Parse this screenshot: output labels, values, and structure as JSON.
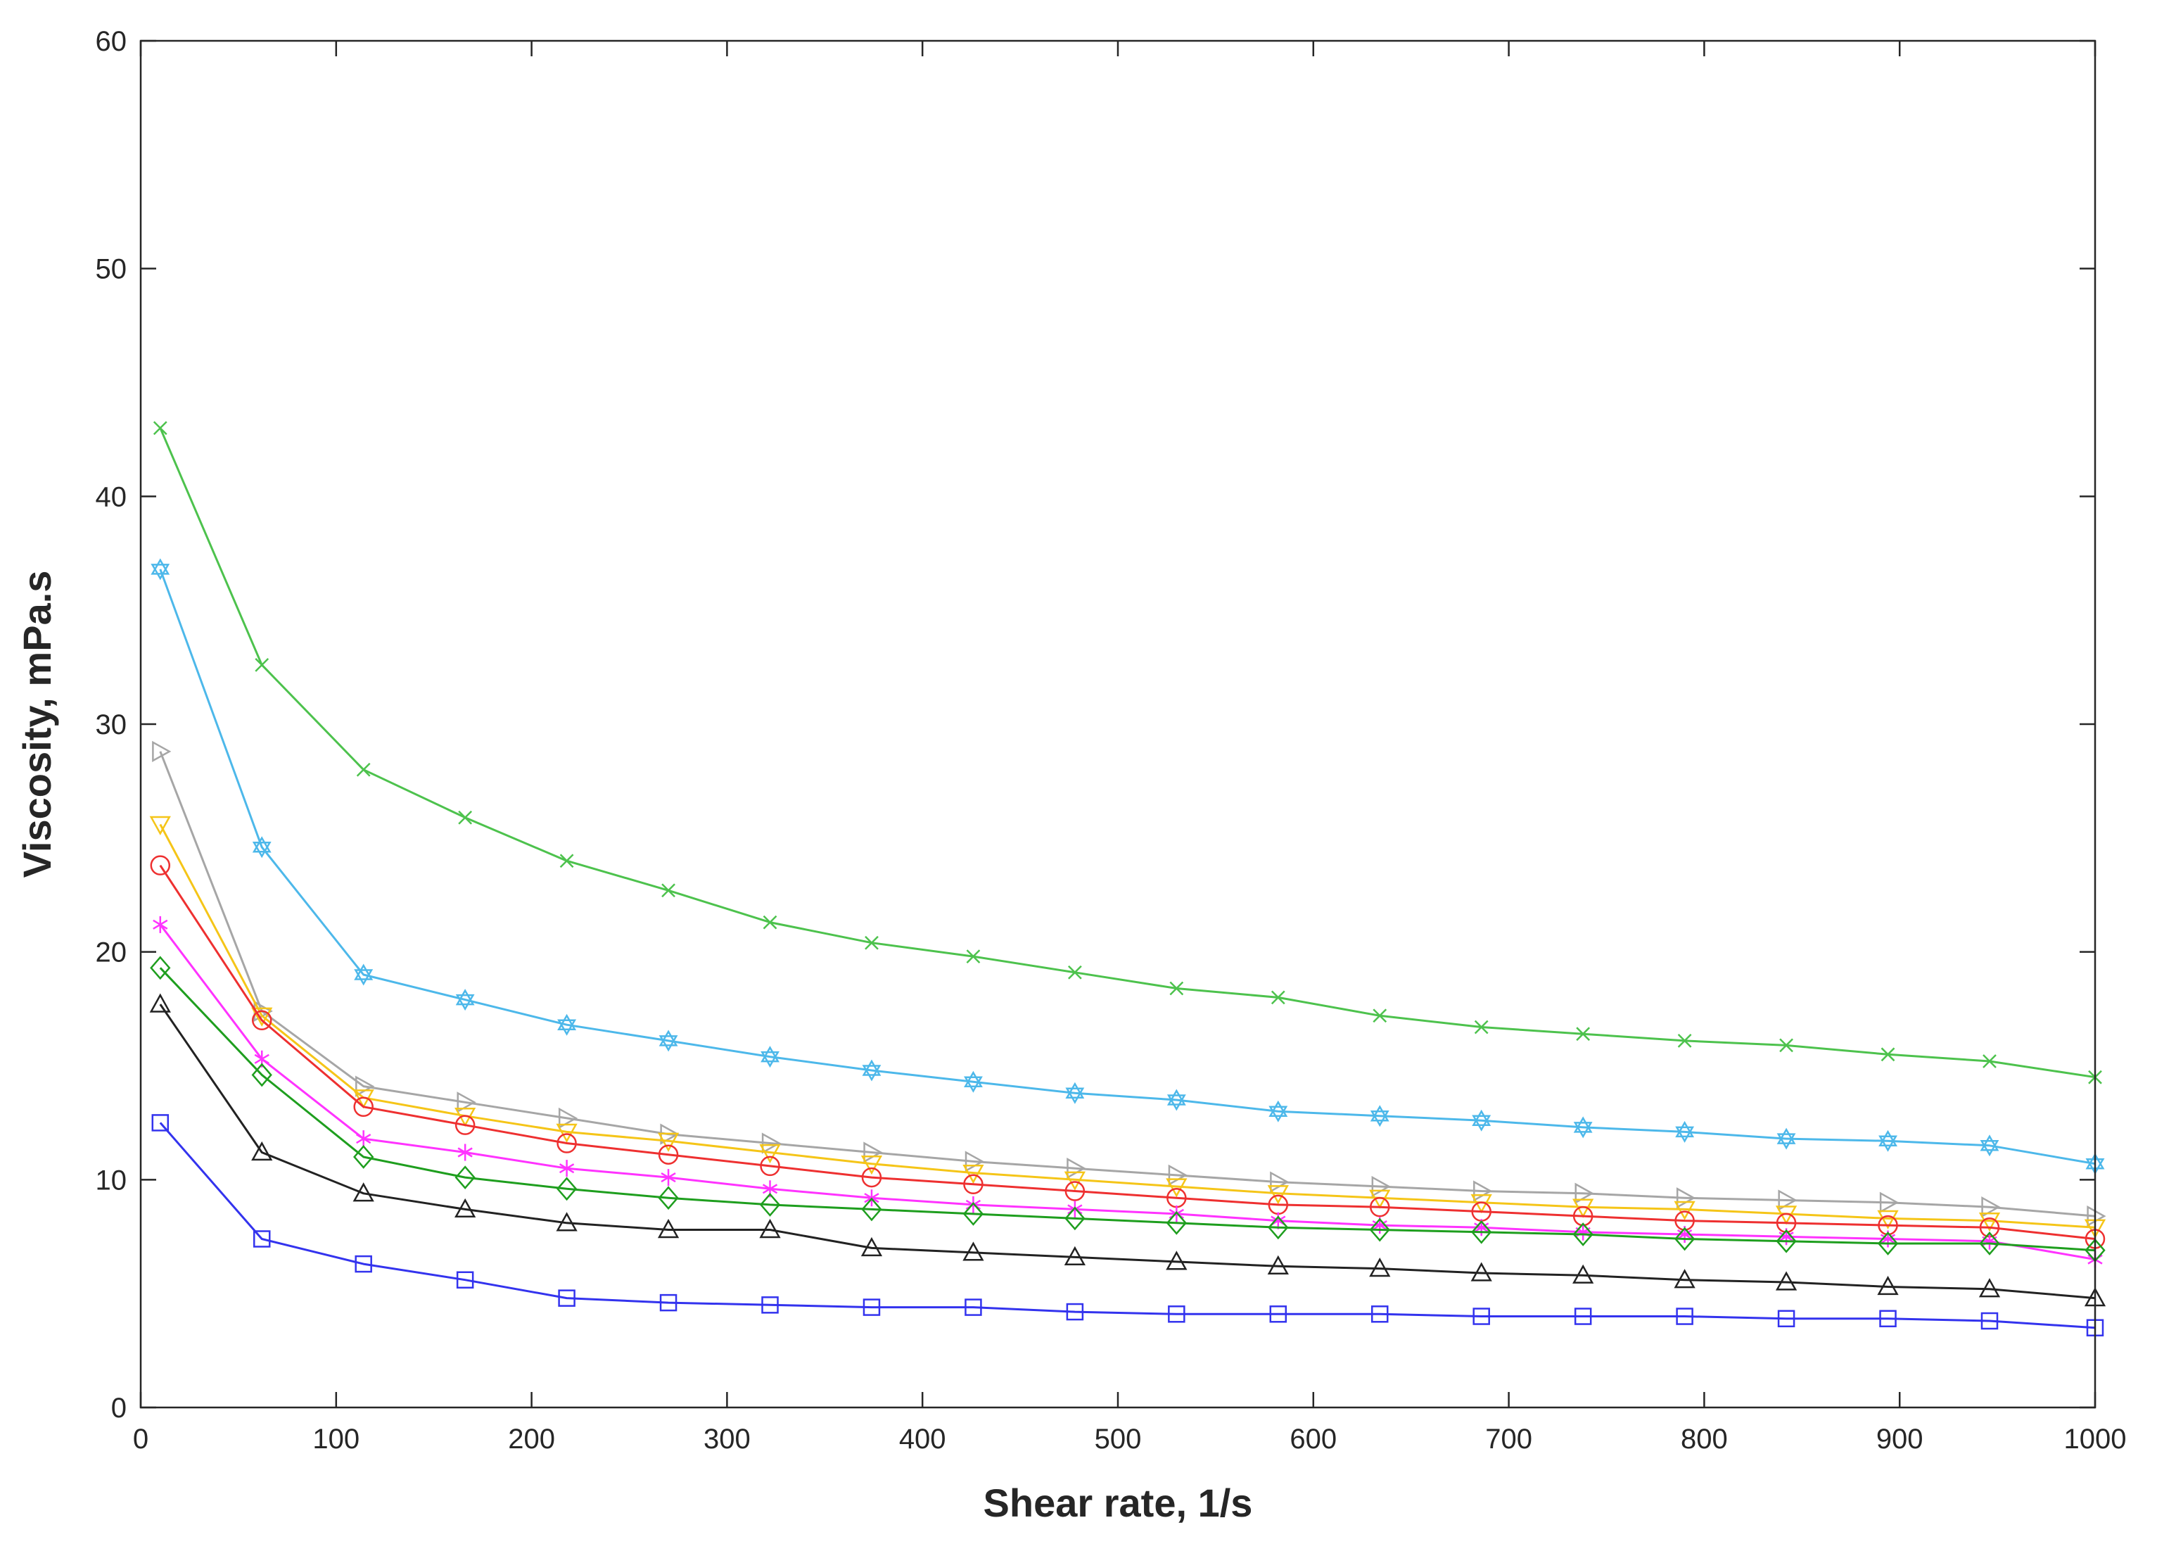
{
  "chart_data": {
    "type": "line",
    "title": "",
    "xlabel": "Shear rate, 1/s",
    "ylabel": "Viscosity, mPa.s",
    "xlim": [
      0,
      1000
    ],
    "ylim": [
      0,
      60
    ],
    "xticks": [
      0,
      100,
      200,
      300,
      400,
      500,
      600,
      700,
      800,
      900,
      1000
    ],
    "yticks": [
      0,
      10,
      20,
      30,
      40,
      50,
      60
    ],
    "grid": false,
    "legend": "none",
    "x": [
      10,
      62,
      114,
      166,
      218,
      270,
      322,
      374,
      426,
      478,
      530,
      582,
      634,
      686,
      738,
      790,
      842,
      894,
      946,
      1000
    ],
    "series": [
      {
        "color": "#4dc24d",
        "marker": "x",
        "values": [
          43.0,
          32.6,
          28.0,
          25.9,
          24.0,
          22.7,
          21.3,
          20.4,
          19.8,
          19.1,
          18.4,
          18.0,
          17.2,
          16.7,
          16.4,
          16.1,
          15.9,
          15.5,
          15.2,
          14.5
        ]
      },
      {
        "color": "#4db8ea",
        "marker": "hexagram",
        "values": [
          36.8,
          24.6,
          19.0,
          17.9,
          16.8,
          16.1,
          15.4,
          14.8,
          14.3,
          13.8,
          13.5,
          13.0,
          12.8,
          12.6,
          12.3,
          12.1,
          11.8,
          11.7,
          11.5,
          10.7
        ]
      },
      {
        "color": "#a6a6a6",
        "marker": "triangle-right",
        "values": [
          28.8,
          17.4,
          14.1,
          13.4,
          12.7,
          12.0,
          11.6,
          11.2,
          10.8,
          10.5,
          10.2,
          9.9,
          9.7,
          9.5,
          9.4,
          9.2,
          9.1,
          9.0,
          8.8,
          8.4
        ]
      },
      {
        "color": "#f5c518",
        "marker": "triangle-down",
        "values": [
          25.6,
          17.2,
          13.6,
          12.8,
          12.1,
          11.7,
          11.2,
          10.7,
          10.3,
          10.0,
          9.7,
          9.4,
          9.2,
          9.0,
          8.8,
          8.7,
          8.5,
          8.3,
          8.2,
          7.9
        ]
      },
      {
        "color": "#ee3030",
        "marker": "circle",
        "values": [
          23.8,
          17.0,
          13.2,
          12.4,
          11.6,
          11.1,
          10.6,
          10.1,
          9.8,
          9.5,
          9.2,
          8.9,
          8.8,
          8.6,
          8.4,
          8.2,
          8.1,
          8.0,
          7.9,
          7.4
        ]
      },
      {
        "color": "#ff33ff",
        "marker": "asterisk",
        "values": [
          21.2,
          15.3,
          11.8,
          11.2,
          10.5,
          10.1,
          9.6,
          9.2,
          8.9,
          8.7,
          8.5,
          8.2,
          8.0,
          7.9,
          7.7,
          7.6,
          7.5,
          7.4,
          7.3,
          6.5
        ]
      },
      {
        "color": "#1e9e1e",
        "marker": "diamond",
        "values": [
          19.3,
          14.6,
          11.0,
          10.1,
          9.6,
          9.2,
          8.9,
          8.7,
          8.5,
          8.3,
          8.1,
          7.9,
          7.8,
          7.7,
          7.6,
          7.4,
          7.3,
          7.2,
          7.2,
          6.9
        ]
      },
      {
        "color": "#222222",
        "marker": "triangle-up",
        "values": [
          17.7,
          11.2,
          9.4,
          8.7,
          8.1,
          7.8,
          7.8,
          7.0,
          6.8,
          6.6,
          6.4,
          6.2,
          6.1,
          5.9,
          5.8,
          5.6,
          5.5,
          5.3,
          5.2,
          4.8
        ]
      },
      {
        "color": "#3333ee",
        "marker": "square",
        "values": [
          12.5,
          7.4,
          6.3,
          5.6,
          4.8,
          4.6,
          4.5,
          4.4,
          4.4,
          4.2,
          4.1,
          4.1,
          4.1,
          4.0,
          4.0,
          4.0,
          3.9,
          3.9,
          3.8,
          3.5
        ]
      }
    ]
  }
}
